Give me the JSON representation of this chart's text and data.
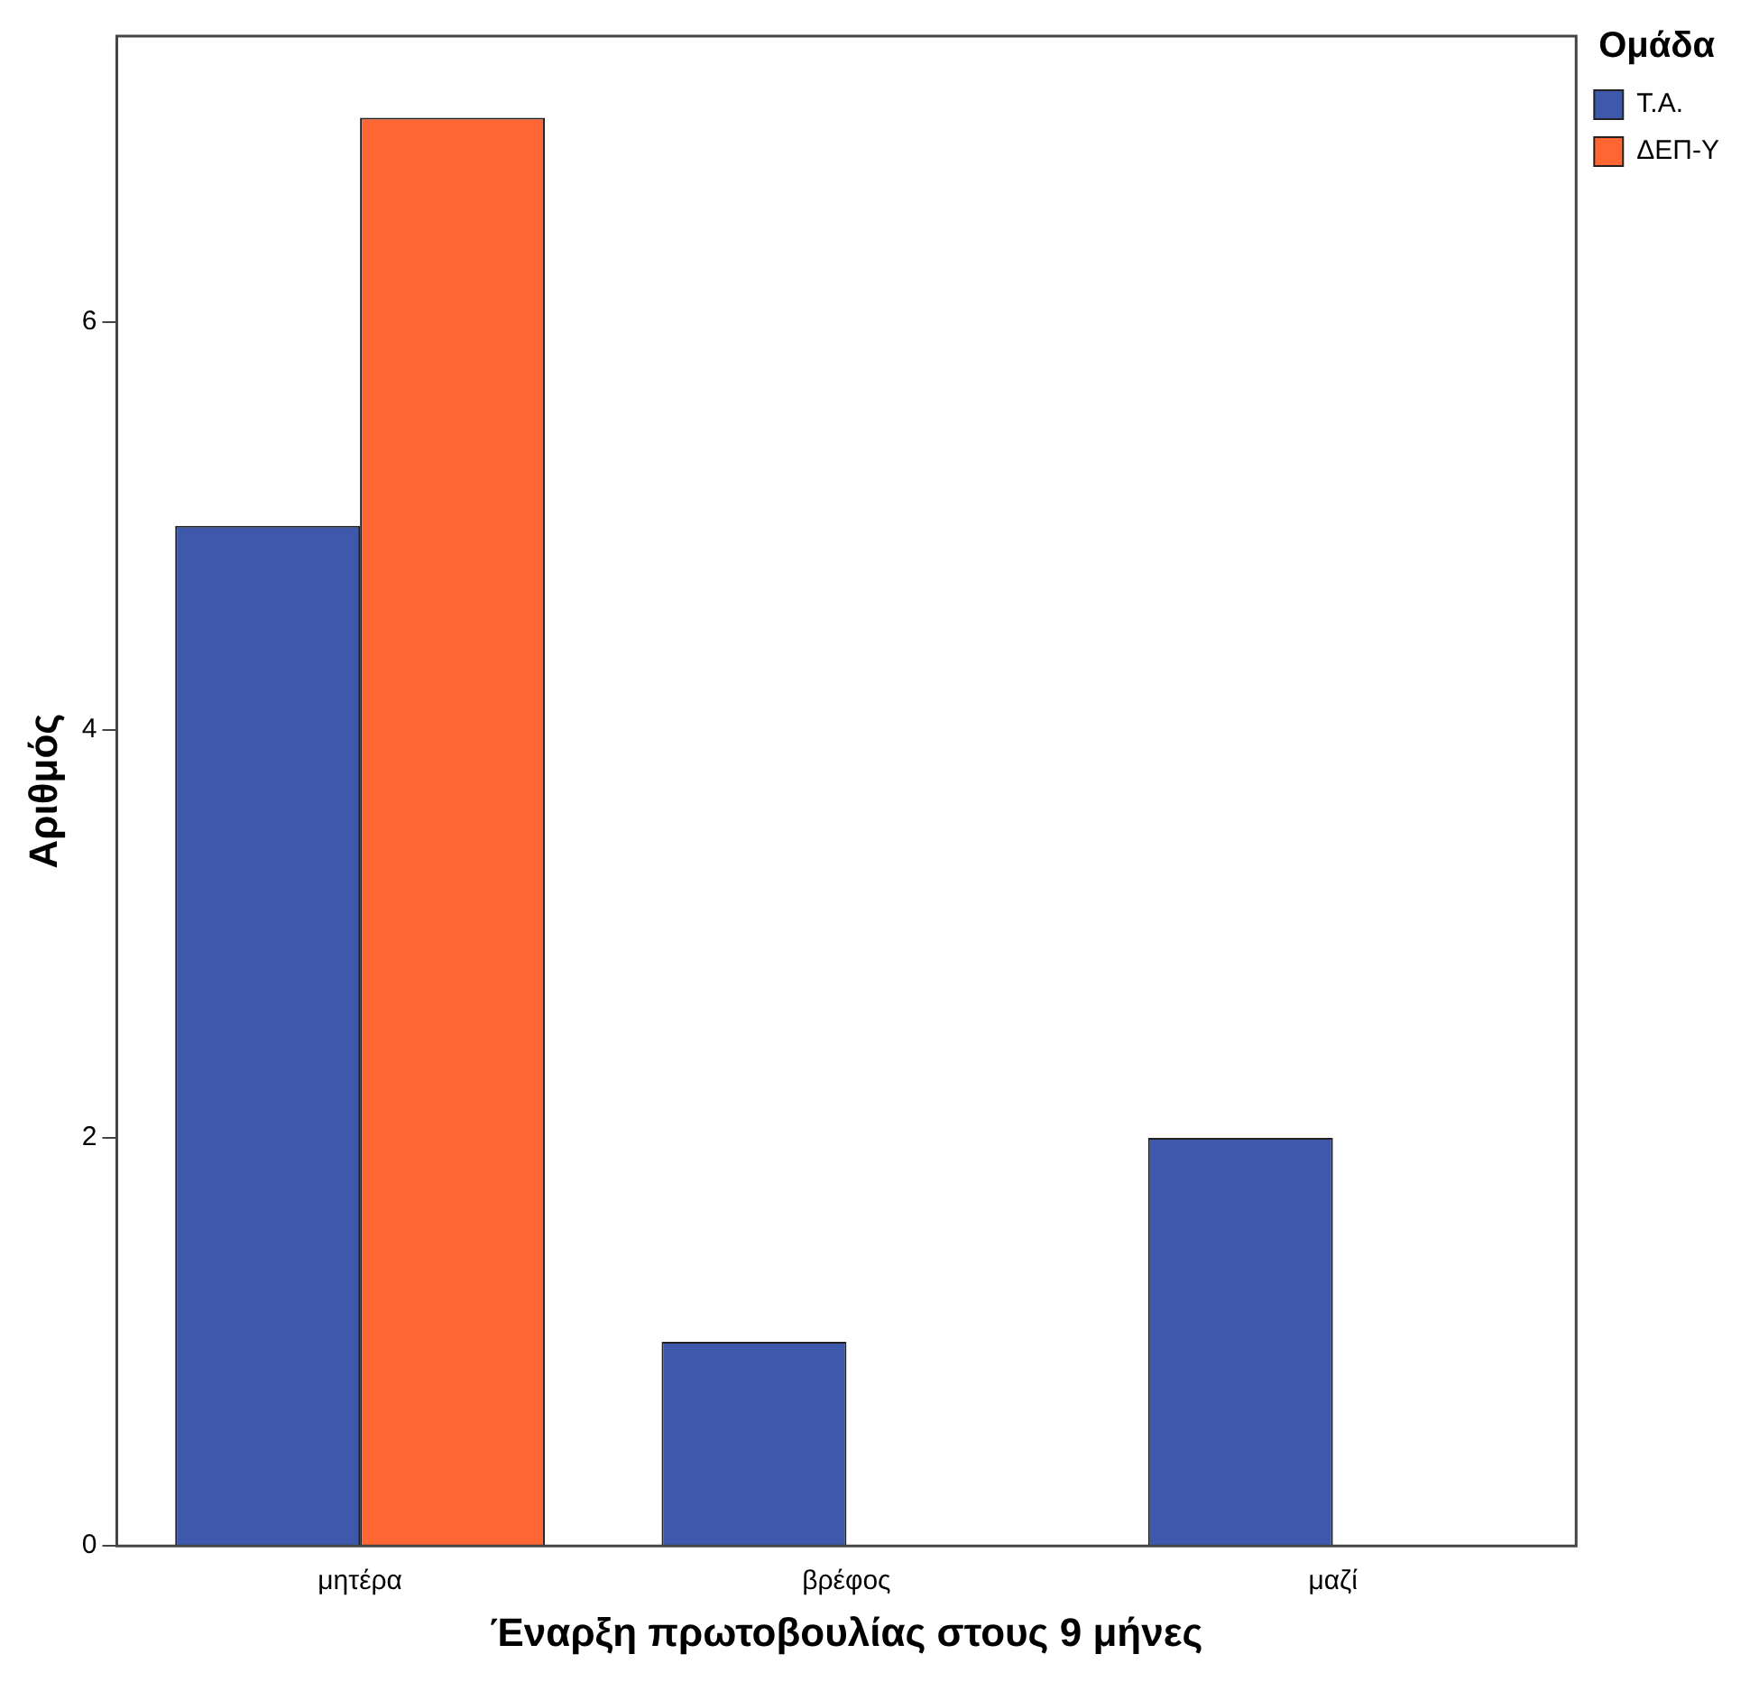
{
  "chart_data": {
    "type": "bar",
    "xlabel": "Έναρξη πρωτοβουλίας στους 9 μήνες",
    "ylabel": "Αριθμός",
    "legend_title": "Ομάδα",
    "categories": [
      "μητέρα",
      "βρέφος",
      "μαζί"
    ],
    "series": [
      {
        "name": "Τ.Α.",
        "color": "#3e58ac",
        "values": [
          5,
          1,
          2
        ]
      },
      {
        "name": "ΔΕΠ-Υ",
        "color": "#ff6633",
        "values": [
          7,
          0,
          0
        ]
      }
    ],
    "ylim": [
      0,
      7.4
    ],
    "yticks": [
      0,
      2,
      4,
      6
    ],
    "grid": false,
    "legend": "top right"
  }
}
